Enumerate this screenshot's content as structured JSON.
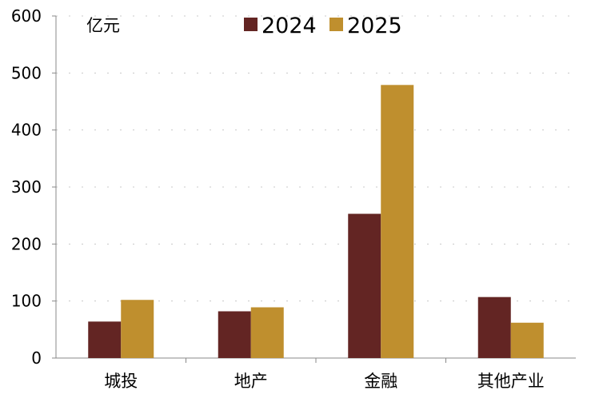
{
  "chart_data": {
    "type": "bar",
    "unit_label": "亿元",
    "categories": [
      "城投",
      "地产",
      "金融",
      "其他产业"
    ],
    "series": [
      {
        "name": "2024",
        "color": "#632523",
        "values": [
          64,
          82,
          253,
          107
        ]
      },
      {
        "name": "2025",
        "color": "#BF8F2E",
        "values": [
          102,
          89,
          479,
          62
        ]
      }
    ],
    "ylim": [
      0,
      600
    ],
    "yticks": [
      "0",
      "100",
      "200",
      "300",
      "400",
      "500",
      "600"
    ],
    "grid": true,
    "legend_position": "top-center"
  }
}
